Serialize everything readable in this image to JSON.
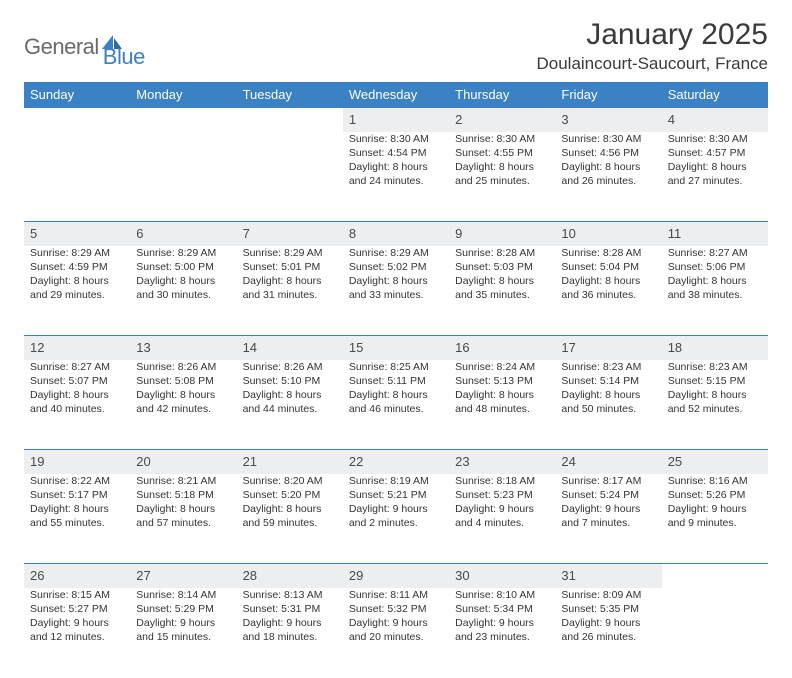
{
  "logo": {
    "text1": "General",
    "text2": "Blue"
  },
  "title": "January 2025",
  "location": "Doulaincourt-Saucourt, France",
  "colors": {
    "header_bg": "#3b82c4",
    "header_text": "#ffffff",
    "daynum_bg": "#eceef0",
    "border": "#3b82c4",
    "body_text": "#343434",
    "logo_gray": "#6a6a6a",
    "logo_blue": "#3b82c4"
  },
  "day_headers": [
    "Sunday",
    "Monday",
    "Tuesday",
    "Wednesday",
    "Thursday",
    "Friday",
    "Saturday"
  ],
  "weeks": [
    [
      null,
      null,
      null,
      {
        "n": "1",
        "sr": "Sunrise: 8:30 AM",
        "ss": "Sunset: 4:54 PM",
        "d1": "Daylight: 8 hours",
        "d2": "and 24 minutes."
      },
      {
        "n": "2",
        "sr": "Sunrise: 8:30 AM",
        "ss": "Sunset: 4:55 PM",
        "d1": "Daylight: 8 hours",
        "d2": "and 25 minutes."
      },
      {
        "n": "3",
        "sr": "Sunrise: 8:30 AM",
        "ss": "Sunset: 4:56 PM",
        "d1": "Daylight: 8 hours",
        "d2": "and 26 minutes."
      },
      {
        "n": "4",
        "sr": "Sunrise: 8:30 AM",
        "ss": "Sunset: 4:57 PM",
        "d1": "Daylight: 8 hours",
        "d2": "and 27 minutes."
      }
    ],
    [
      {
        "n": "5",
        "sr": "Sunrise: 8:29 AM",
        "ss": "Sunset: 4:59 PM",
        "d1": "Daylight: 8 hours",
        "d2": "and 29 minutes."
      },
      {
        "n": "6",
        "sr": "Sunrise: 8:29 AM",
        "ss": "Sunset: 5:00 PM",
        "d1": "Daylight: 8 hours",
        "d2": "and 30 minutes."
      },
      {
        "n": "7",
        "sr": "Sunrise: 8:29 AM",
        "ss": "Sunset: 5:01 PM",
        "d1": "Daylight: 8 hours",
        "d2": "and 31 minutes."
      },
      {
        "n": "8",
        "sr": "Sunrise: 8:29 AM",
        "ss": "Sunset: 5:02 PM",
        "d1": "Daylight: 8 hours",
        "d2": "and 33 minutes."
      },
      {
        "n": "9",
        "sr": "Sunrise: 8:28 AM",
        "ss": "Sunset: 5:03 PM",
        "d1": "Daylight: 8 hours",
        "d2": "and 35 minutes."
      },
      {
        "n": "10",
        "sr": "Sunrise: 8:28 AM",
        "ss": "Sunset: 5:04 PM",
        "d1": "Daylight: 8 hours",
        "d2": "and 36 minutes."
      },
      {
        "n": "11",
        "sr": "Sunrise: 8:27 AM",
        "ss": "Sunset: 5:06 PM",
        "d1": "Daylight: 8 hours",
        "d2": "and 38 minutes."
      }
    ],
    [
      {
        "n": "12",
        "sr": "Sunrise: 8:27 AM",
        "ss": "Sunset: 5:07 PM",
        "d1": "Daylight: 8 hours",
        "d2": "and 40 minutes."
      },
      {
        "n": "13",
        "sr": "Sunrise: 8:26 AM",
        "ss": "Sunset: 5:08 PM",
        "d1": "Daylight: 8 hours",
        "d2": "and 42 minutes."
      },
      {
        "n": "14",
        "sr": "Sunrise: 8:26 AM",
        "ss": "Sunset: 5:10 PM",
        "d1": "Daylight: 8 hours",
        "d2": "and 44 minutes."
      },
      {
        "n": "15",
        "sr": "Sunrise: 8:25 AM",
        "ss": "Sunset: 5:11 PM",
        "d1": "Daylight: 8 hours",
        "d2": "and 46 minutes."
      },
      {
        "n": "16",
        "sr": "Sunrise: 8:24 AM",
        "ss": "Sunset: 5:13 PM",
        "d1": "Daylight: 8 hours",
        "d2": "and 48 minutes."
      },
      {
        "n": "17",
        "sr": "Sunrise: 8:23 AM",
        "ss": "Sunset: 5:14 PM",
        "d1": "Daylight: 8 hours",
        "d2": "and 50 minutes."
      },
      {
        "n": "18",
        "sr": "Sunrise: 8:23 AM",
        "ss": "Sunset: 5:15 PM",
        "d1": "Daylight: 8 hours",
        "d2": "and 52 minutes."
      }
    ],
    [
      {
        "n": "19",
        "sr": "Sunrise: 8:22 AM",
        "ss": "Sunset: 5:17 PM",
        "d1": "Daylight: 8 hours",
        "d2": "and 55 minutes."
      },
      {
        "n": "20",
        "sr": "Sunrise: 8:21 AM",
        "ss": "Sunset: 5:18 PM",
        "d1": "Daylight: 8 hours",
        "d2": "and 57 minutes."
      },
      {
        "n": "21",
        "sr": "Sunrise: 8:20 AM",
        "ss": "Sunset: 5:20 PM",
        "d1": "Daylight: 8 hours",
        "d2": "and 59 minutes."
      },
      {
        "n": "22",
        "sr": "Sunrise: 8:19 AM",
        "ss": "Sunset: 5:21 PM",
        "d1": "Daylight: 9 hours",
        "d2": "and 2 minutes."
      },
      {
        "n": "23",
        "sr": "Sunrise: 8:18 AM",
        "ss": "Sunset: 5:23 PM",
        "d1": "Daylight: 9 hours",
        "d2": "and 4 minutes."
      },
      {
        "n": "24",
        "sr": "Sunrise: 8:17 AM",
        "ss": "Sunset: 5:24 PM",
        "d1": "Daylight: 9 hours",
        "d2": "and 7 minutes."
      },
      {
        "n": "25",
        "sr": "Sunrise: 8:16 AM",
        "ss": "Sunset: 5:26 PM",
        "d1": "Daylight: 9 hours",
        "d2": "and 9 minutes."
      }
    ],
    [
      {
        "n": "26",
        "sr": "Sunrise: 8:15 AM",
        "ss": "Sunset: 5:27 PM",
        "d1": "Daylight: 9 hours",
        "d2": "and 12 minutes."
      },
      {
        "n": "27",
        "sr": "Sunrise: 8:14 AM",
        "ss": "Sunset: 5:29 PM",
        "d1": "Daylight: 9 hours",
        "d2": "and 15 minutes."
      },
      {
        "n": "28",
        "sr": "Sunrise: 8:13 AM",
        "ss": "Sunset: 5:31 PM",
        "d1": "Daylight: 9 hours",
        "d2": "and 18 minutes."
      },
      {
        "n": "29",
        "sr": "Sunrise: 8:11 AM",
        "ss": "Sunset: 5:32 PM",
        "d1": "Daylight: 9 hours",
        "d2": "and 20 minutes."
      },
      {
        "n": "30",
        "sr": "Sunrise: 8:10 AM",
        "ss": "Sunset: 5:34 PM",
        "d1": "Daylight: 9 hours",
        "d2": "and 23 minutes."
      },
      {
        "n": "31",
        "sr": "Sunrise: 8:09 AM",
        "ss": "Sunset: 5:35 PM",
        "d1": "Daylight: 9 hours",
        "d2": "and 26 minutes."
      },
      null
    ]
  ]
}
